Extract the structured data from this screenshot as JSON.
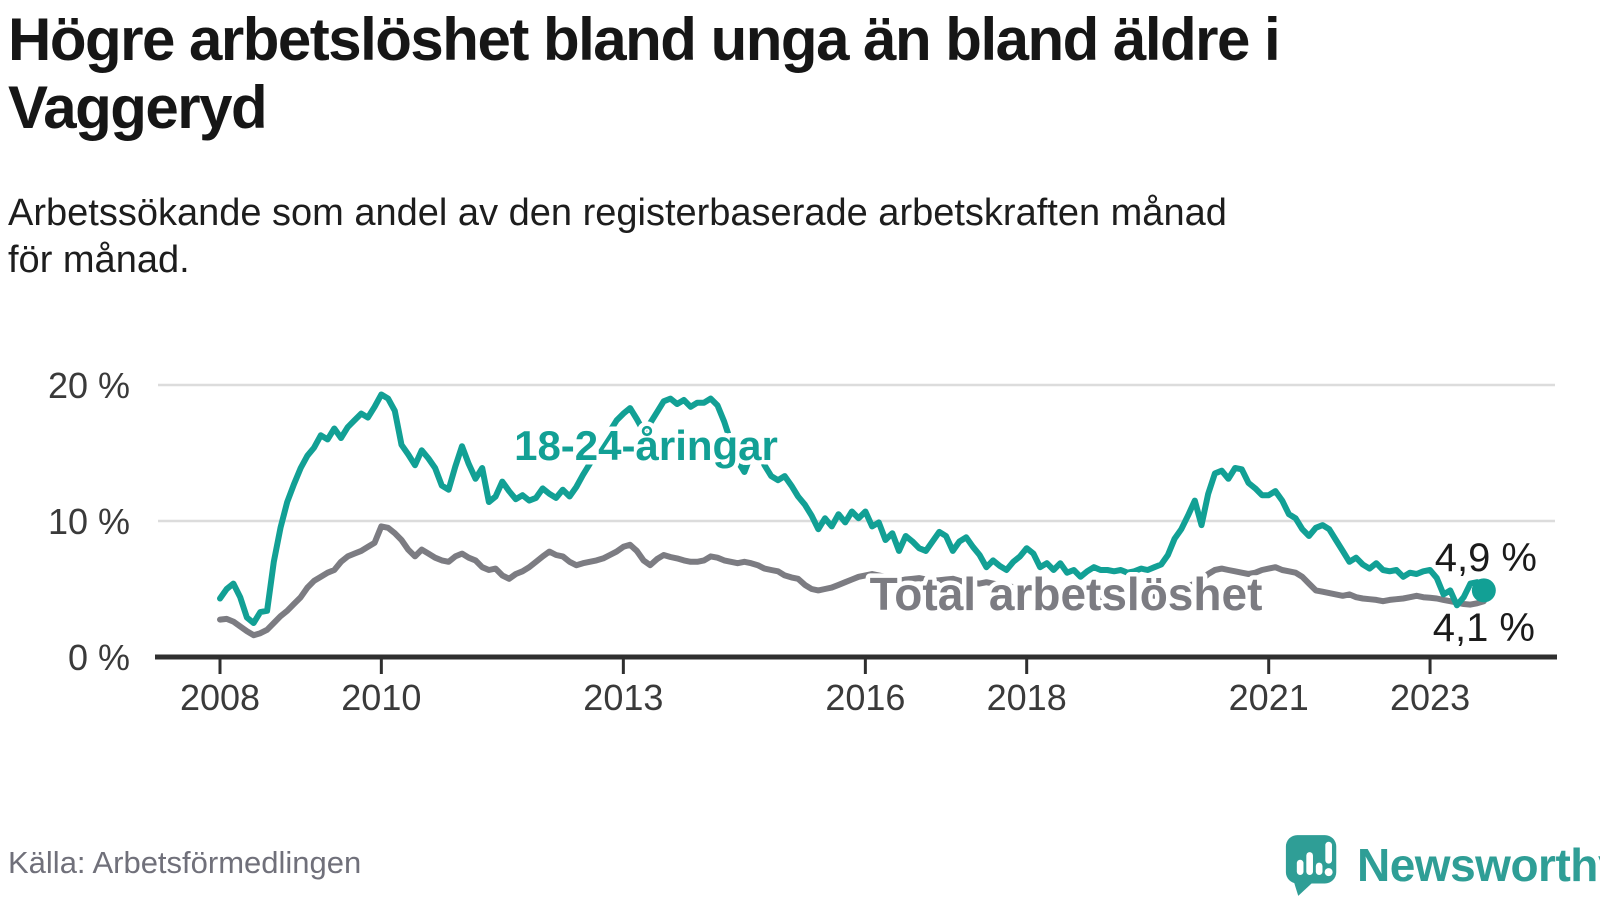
{
  "header": {
    "title": "Högre arbetslöshet bland unga än bland äldre i Vaggeryd",
    "title_lines": [
      "Högre arbetslöshet bland unga än bland äldre i",
      "Vaggeryd"
    ],
    "subtitle": "Arbetssökande som andel av den registerbaserade arbetskraften månad för månad.",
    "subtitle_lines": [
      "Arbetssökande som andel av den registerbaserade arbetskraften månad",
      "för månad."
    ]
  },
  "footer": {
    "source": "Källa: Arbetsförmedlingen",
    "brand": "Newsworthy"
  },
  "colors": {
    "youth_line": "#12a095",
    "total_line": "#7c7c82",
    "grid": "#dcdcdc",
    "axis": "#2f2f2f",
    "tick_text": "#3a3a3a",
    "end_label_text": "#1b1b1b",
    "title_text": "#161616",
    "source_text": "#70707a",
    "brand_teal": "#2f9e96",
    "halo": "#ffffff"
  },
  "chart_data": {
    "type": "line",
    "title": "Högre arbetslöshet bland unga än bland äldre i Vaggeryd",
    "xlabel": "",
    "ylabel": "",
    "unit": "%",
    "frequency": "monthly",
    "start": "2008-01",
    "end": "2023-09",
    "grid": "horizontal",
    "legend_position": "inline-labels",
    "ylim": [
      0,
      20.5
    ],
    "y_ticks": [
      0,
      10,
      20
    ],
    "y_tick_labels": [
      "0 %",
      "10 %",
      "20 %"
    ],
    "x_tick_years": [
      2008,
      2010,
      2013,
      2016,
      2018,
      2021,
      2023
    ],
    "x_tick_labels": [
      "2008",
      "2010",
      "2013",
      "2016",
      "2018",
      "2021",
      "2023"
    ],
    "series": [
      {
        "name": "18-24-åringar",
        "color": "#12a095",
        "end_label": "4,9 %",
        "end_value": 4.9,
        "end_dot": true,
        "values": [
          4.3,
          5.0,
          5.4,
          4.4,
          2.9,
          2.5,
          3.3,
          3.4,
          7.0,
          9.5,
          11.4,
          12.7,
          13.9,
          14.8,
          15.4,
          16.3,
          16.0,
          16.8,
          16.1,
          16.9,
          17.4,
          17.9,
          17.6,
          18.4,
          19.3,
          19.0,
          18.1,
          15.6,
          14.9,
          14.1,
          15.2,
          14.6,
          13.9,
          12.6,
          12.3,
          14.0,
          15.5,
          14.2,
          13.1,
          13.9,
          11.4,
          11.8,
          12.9,
          12.2,
          11.6,
          11.9,
          11.5,
          11.7,
          12.4,
          12.0,
          11.7,
          12.3,
          11.8,
          12.5,
          13.4,
          14.2,
          15.0,
          15.8,
          16.6,
          17.4,
          17.9,
          18.3,
          17.5,
          16.6,
          17.2,
          18.0,
          18.8,
          19.0,
          18.6,
          18.9,
          18.4,
          18.7,
          18.7,
          19.0,
          18.5,
          17.3,
          15.8,
          14.4,
          13.6,
          14.9,
          15.3,
          14.1,
          13.3,
          13.0,
          13.3,
          12.6,
          11.8,
          11.2,
          10.4,
          9.4,
          10.2,
          9.6,
          10.5,
          9.9,
          10.7,
          10.2,
          10.7,
          9.6,
          9.9,
          8.6,
          9.1,
          7.8,
          8.9,
          8.5,
          8.0,
          7.8,
          8.5,
          9.2,
          8.9,
          7.8,
          8.5,
          8.8,
          8.1,
          7.5,
          6.6,
          7.1,
          6.7,
          6.4,
          7.0,
          7.4,
          8.0,
          7.6,
          6.6,
          6.9,
          6.4,
          6.9,
          6.2,
          6.4,
          5.9,
          6.3,
          6.6,
          6.4,
          6.4,
          6.3,
          6.4,
          6.2,
          6.3,
          6.5,
          6.4,
          6.6,
          6.8,
          7.5,
          8.7,
          9.4,
          10.4,
          11.5,
          9.7,
          12.0,
          13.5,
          13.7,
          13.1,
          13.9,
          13.8,
          12.8,
          12.4,
          11.9,
          11.9,
          12.2,
          11.5,
          10.5,
          10.2,
          9.4,
          8.9,
          9.5,
          9.7,
          9.4,
          8.6,
          7.8,
          7.0,
          7.3,
          6.8,
          6.5,
          6.9,
          6.4,
          6.3,
          6.4,
          5.9,
          6.2,
          6.1,
          6.3,
          6.4,
          5.8,
          4.6,
          4.9,
          3.8,
          4.4,
          5.4,
          5.5,
          4.9
        ]
      },
      {
        "name": "Total arbetslöshet",
        "color": "#7c7c82",
        "end_label": "4,1 %",
        "end_value": 4.1,
        "end_dot": false,
        "values": [
          2.75,
          2.8,
          2.6,
          2.25,
          1.9,
          1.6,
          1.75,
          2.0,
          2.5,
          3.0,
          3.4,
          3.9,
          4.4,
          5.1,
          5.6,
          5.9,
          6.2,
          6.4,
          7.0,
          7.4,
          7.6,
          7.8,
          8.1,
          8.4,
          9.6,
          9.5,
          9.1,
          8.6,
          7.9,
          7.4,
          7.9,
          7.6,
          7.3,
          7.1,
          7.0,
          7.4,
          7.6,
          7.3,
          7.1,
          6.6,
          6.4,
          6.5,
          6.0,
          5.75,
          6.1,
          6.3,
          6.6,
          7.0,
          7.4,
          7.75,
          7.5,
          7.4,
          7.0,
          6.75,
          6.9,
          7.0,
          7.1,
          7.25,
          7.5,
          7.75,
          8.1,
          8.25,
          7.8,
          7.1,
          6.75,
          7.2,
          7.5,
          7.35,
          7.25,
          7.1,
          7.0,
          7.0,
          7.1,
          7.4,
          7.3,
          7.1,
          7.0,
          6.9,
          7.0,
          6.9,
          6.75,
          6.5,
          6.4,
          6.3,
          6.0,
          5.85,
          5.75,
          5.3,
          5.0,
          4.9,
          5.0,
          5.1,
          5.3,
          5.5,
          5.7,
          5.9,
          6.0,
          6.1,
          6.0,
          5.9,
          5.75,
          5.6,
          5.7,
          5.75,
          5.8,
          5.7,
          5.6,
          5.65,
          5.7,
          5.75,
          5.6,
          5.5,
          5.45,
          5.4,
          5.5,
          5.4,
          5.3,
          5.2,
          5.15,
          5.1,
          5.2,
          5.1,
          5.0,
          4.9,
          4.8,
          4.7,
          4.75,
          4.7,
          4.6,
          4.5,
          4.45,
          4.4,
          4.4,
          4.35,
          4.3,
          4.35,
          4.4,
          4.5,
          4.6,
          4.5,
          4.45,
          4.5,
          4.7,
          5.0,
          5.2,
          5.4,
          5.7,
          6.1,
          6.4,
          6.5,
          6.4,
          6.3,
          6.2,
          6.1,
          6.2,
          6.4,
          6.5,
          6.6,
          6.4,
          6.3,
          6.2,
          5.9,
          5.4,
          4.9,
          4.8,
          4.7,
          4.6,
          4.5,
          4.6,
          4.4,
          4.3,
          4.25,
          4.2,
          4.1,
          4.2,
          4.25,
          4.3,
          4.4,
          4.5,
          4.4,
          4.35,
          4.3,
          4.2,
          4.1,
          4.0,
          3.9,
          3.85,
          3.95,
          4.1
        ]
      }
    ],
    "annotations": [
      {
        "text": "18-24-åringar",
        "series": 0
      },
      {
        "text": "Total arbetslöshet",
        "series": 1
      },
      {
        "text": "4,9 %",
        "series": 0
      },
      {
        "text": "4,1 %",
        "series": 1
      }
    ]
  }
}
